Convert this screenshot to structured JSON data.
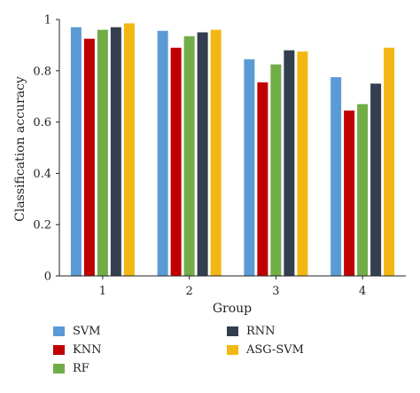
{
  "chart_data": {
    "type": "bar",
    "xlabel": "Group",
    "ylabel": "Classification accuracy",
    "categories": [
      "1",
      "2",
      "3",
      "4"
    ],
    "ylim": [
      0,
      1
    ],
    "yticks": [
      "0",
      "0.2",
      "0.4",
      "0.6",
      "0.8",
      "1"
    ],
    "series": [
      {
        "name": "SVM",
        "color": "#5B9BD5",
        "values": [
          0.97,
          0.956,
          0.845,
          0.775
        ]
      },
      {
        "name": "KNN",
        "color": "#C00000",
        "values": [
          0.925,
          0.89,
          0.755,
          0.645
        ]
      },
      {
        "name": "RF",
        "color": "#70AD47",
        "values": [
          0.96,
          0.935,
          0.825,
          0.67
        ]
      },
      {
        "name": "RNN",
        "color": "#333F50",
        "values": [
          0.97,
          0.95,
          0.88,
          0.75
        ]
      },
      {
        "name": "ASG-SVM",
        "color": "#F2B712",
        "values": [
          0.985,
          0.96,
          0.875,
          0.89
        ]
      }
    ],
    "grid": false,
    "legend_position": "bottom"
  }
}
